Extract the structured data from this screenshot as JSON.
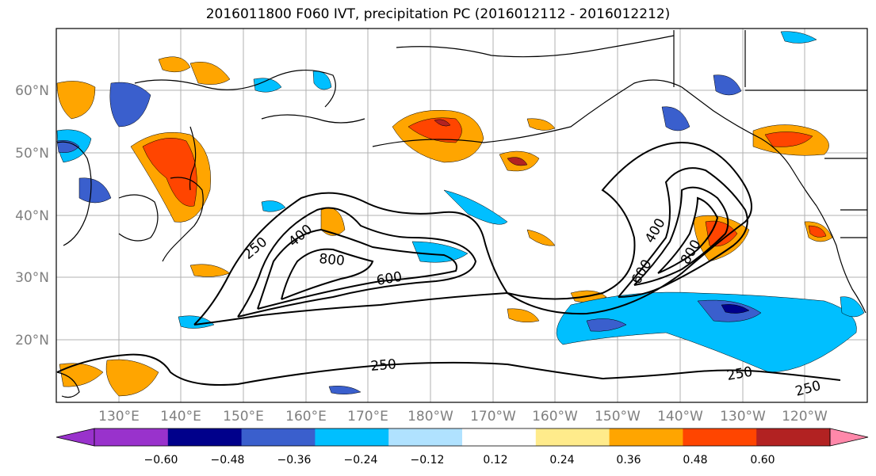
{
  "title": "2016011800 F060 IVT, precipitation PC (2016012112 - 2016012212)",
  "map": {
    "lon_ticks": [
      "130°E",
      "140°E",
      "150°E",
      "160°E",
      "170°E",
      "180°W",
      "170°W",
      "160°W",
      "150°W",
      "140°W",
      "130°W",
      "120°W"
    ],
    "lat_ticks": [
      "60°N",
      "50°N",
      "40°N",
      "30°N",
      "20°N"
    ],
    "ivt_contour_labels": [
      "250",
      "400",
      "800",
      "600",
      "400",
      "600",
      "800",
      "250",
      "250",
      "250"
    ]
  },
  "colorbar": {
    "colors": [
      "#9932cc",
      "#00008b",
      "#3a5fcd",
      "#00bfff",
      "#b0e2ff",
      "#ffffff",
      "#ffeb8b",
      "#ffa500",
      "#ff4500",
      "#b22222",
      "#ff88aa"
    ],
    "tick_labels": [
      "−0.60",
      "−0.48",
      "−0.36",
      "−0.24",
      "−0.12",
      "0.12",
      "0.24",
      "0.36",
      "0.48",
      "0.60"
    ]
  }
}
